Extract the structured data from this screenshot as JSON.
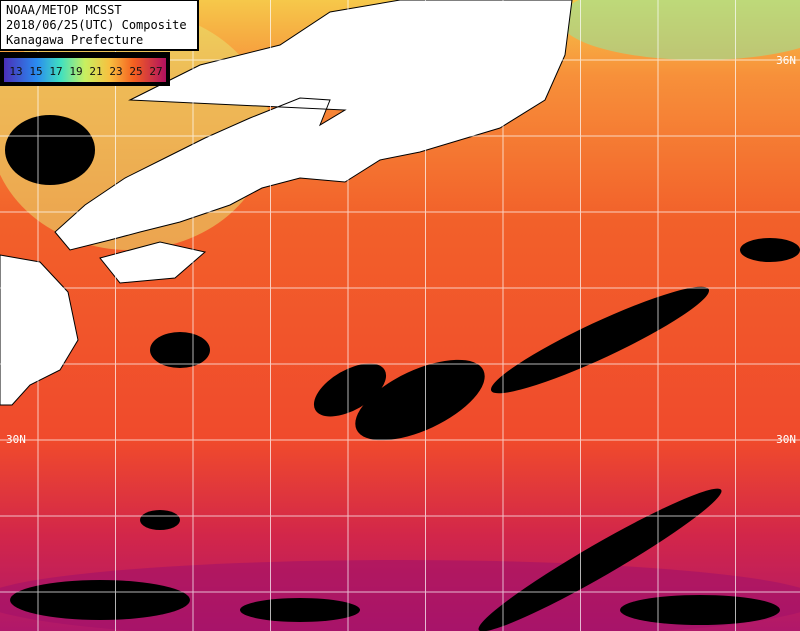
{
  "header": {
    "lines": [
      "NOAA/METOP MCSST",
      "2018/06/25(UTC) Composite",
      "Kanagawa Prefecture"
    ]
  },
  "legend": {
    "labels": [
      13,
      15,
      17,
      19,
      21,
      23,
      25,
      27
    ]
  },
  "latitude_labels": {
    "right_top": "36N",
    "left_bottom": "30N",
    "right_bottom": "30N"
  }
}
